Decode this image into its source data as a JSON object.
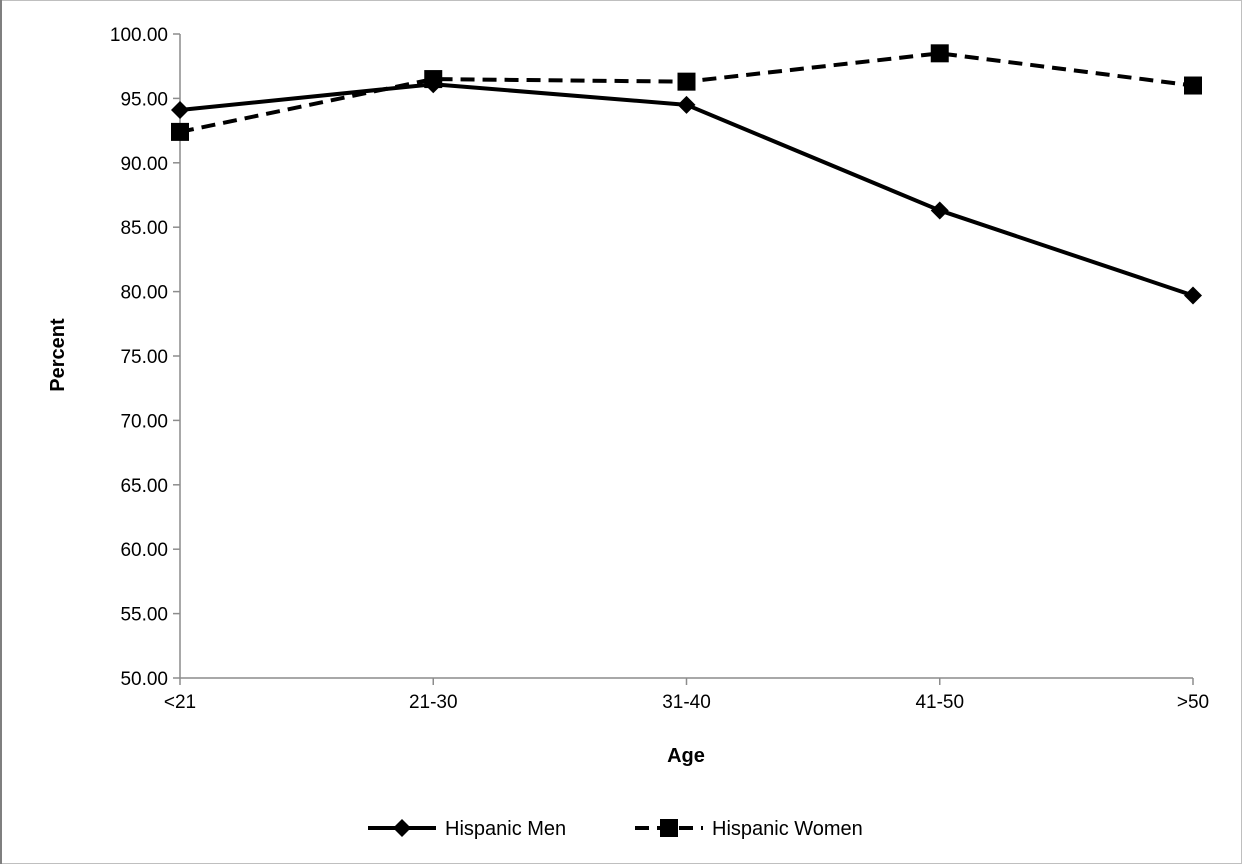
{
  "chart_data": {
    "type": "line",
    "categories": [
      "<21",
      "21-30",
      "31-40",
      "41-50",
      ">50"
    ],
    "series": [
      {
        "name": "Hispanic Men",
        "values": [
          94.1,
          96.1,
          94.5,
          86.3,
          79.7
        ],
        "line": "solid",
        "marker": "diamond",
        "color": "#000000"
      },
      {
        "name": "Hispanic Women",
        "values": [
          92.4,
          96.5,
          96.3,
          98.5,
          96.0
        ],
        "line": "dashed",
        "marker": "square",
        "color": "#000000"
      }
    ],
    "xlabel": "Age",
    "ylabel": "Percent",
    "ylim": [
      50,
      100
    ],
    "yticks": [
      "50.00",
      "55.00",
      "60.00",
      "65.00",
      "70.00",
      "75.00",
      "80.00",
      "85.00",
      "90.00",
      "95.00",
      "100.00"
    ],
    "grid": false,
    "legend": "bottom-center"
  }
}
